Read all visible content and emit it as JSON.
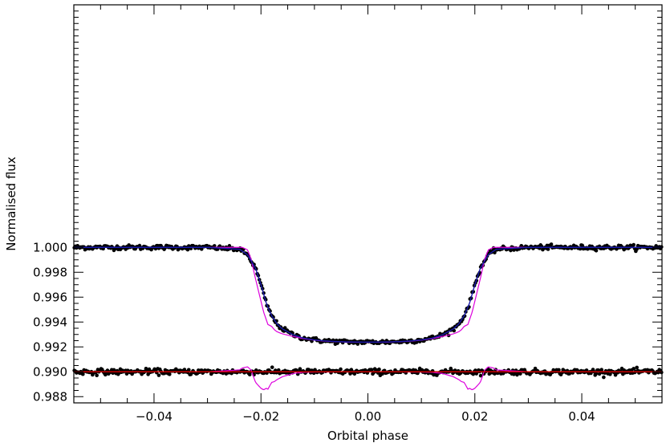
{
  "chart_data": {
    "type": "scatter",
    "title": "",
    "xlabel": "Orbital phase",
    "ylabel": "Normalised flux",
    "xlim": [
      -0.055,
      0.055
    ],
    "ylim": [
      0.9875,
      1.0195
    ],
    "xticks": [
      -0.04,
      -0.02,
      0.0,
      0.02,
      0.04
    ],
    "xtick_labels": [
      "−0.04",
      "−0.02",
      "0.00",
      "0.02",
      "0.04"
    ],
    "yticks": [
      0.988,
      0.99,
      0.992,
      0.994,
      0.996,
      0.998,
      1.0
    ],
    "ytick_labels": [
      "0.988",
      "0.990",
      "0.992",
      "0.994",
      "0.996",
      "0.998",
      "1.000"
    ],
    "grid": false,
    "transit_model": {
      "phase": [
        -0.055,
        -0.03,
        -0.024,
        -0.0225,
        -0.021,
        -0.02,
        -0.019,
        -0.018,
        -0.017,
        -0.016,
        -0.014,
        -0.012,
        -0.01,
        -0.008,
        -0.006,
        -0.004,
        -0.002,
        0.0,
        0.002,
        0.004,
        0.006,
        0.008,
        0.01,
        0.012,
        0.014,
        0.016,
        0.017,
        0.018,
        0.019,
        0.02,
        0.021,
        0.0225,
        0.024,
        0.03,
        0.055
      ],
      "flux": [
        1.0,
        1.0,
        0.99985,
        0.9994,
        0.9983,
        0.997,
        0.9955,
        0.9945,
        0.99385,
        0.99345,
        0.99298,
        0.9927,
        0.99256,
        0.99248,
        0.99243,
        0.9924,
        0.99239,
        0.99238,
        0.99239,
        0.9924,
        0.99243,
        0.99248,
        0.99256,
        0.9927,
        0.99298,
        0.99345,
        0.99385,
        0.9945,
        0.9955,
        0.997,
        0.9983,
        0.9994,
        0.99985,
        1.0,
        1.0
      ]
    },
    "alt_model": {
      "phase": [
        -0.055,
        -0.0235,
        -0.0225,
        -0.0218,
        -0.0212,
        -0.0203,
        -0.0195,
        -0.0187,
        -0.018,
        -0.0175,
        -0.017,
        -0.016,
        -0.014,
        -0.012,
        -0.01,
        -0.008,
        -0.006,
        -0.004,
        -0.002,
        0.0,
        0.002,
        0.004,
        0.006,
        0.008,
        0.01,
        0.012,
        0.014,
        0.016,
        0.017,
        0.0175,
        0.018,
        0.0187,
        0.0195,
        0.0203,
        0.0212,
        0.0218,
        0.0225,
        0.0235,
        0.055
      ],
      "flux": [
        1.0,
        1.0,
        0.9998,
        0.999,
        0.9978,
        0.9962,
        0.9948,
        0.9938,
        0.99365,
        0.99338,
        0.99322,
        0.99305,
        0.99284,
        0.99266,
        0.99254,
        0.99246,
        0.99242,
        0.99239,
        0.99238,
        0.99237,
        0.99238,
        0.99239,
        0.99242,
        0.99246,
        0.99254,
        0.99266,
        0.99284,
        0.99305,
        0.99322,
        0.99338,
        0.99365,
        0.9938,
        0.9948,
        0.9962,
        0.9978,
        0.999,
        0.9998,
        1.0,
        1.0
      ]
    },
    "residual_level": 0.99,
    "residual_scatter_std": 0.00011,
    "transit_scatter_std": 9e-05,
    "point_spacing": 0.0002,
    "colors": {
      "points": "#000000",
      "transit_model": "#1a1aaa",
      "alt_model": "#dd00dd",
      "residual_line": "#cc0000",
      "axes": "#000000"
    }
  }
}
